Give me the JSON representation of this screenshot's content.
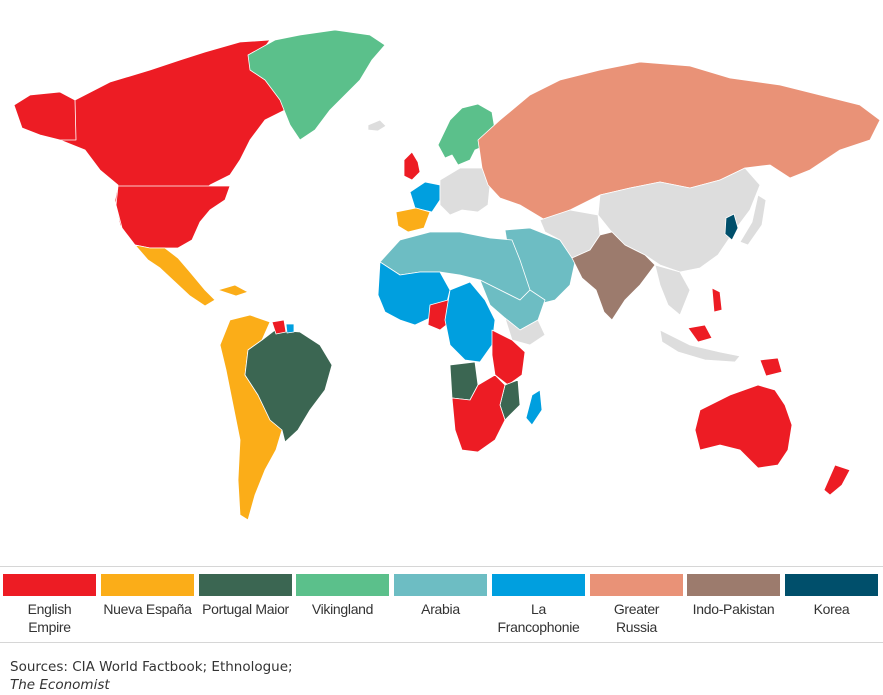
{
  "legend": [
    {
      "label": "English\nEmpire",
      "color": "#ed1c24"
    },
    {
      "label": "Nueva España",
      "color": "#fbad18"
    },
    {
      "label": "Portugal Maior",
      "color": "#3b6652"
    },
    {
      "label": "Vikingland",
      "color": "#5bc08b"
    },
    {
      "label": "Arabia",
      "color": "#6dbdc3"
    },
    {
      "label": "La\nFrancophonie",
      "color": "#009fdf"
    },
    {
      "label": "Greater\nRussia",
      "color": "#e99277"
    },
    {
      "label": "Indo-Pakistan",
      "color": "#9c7b6d"
    },
    {
      "label": "Korea",
      "color": "#004f6b"
    }
  ],
  "unassigned_color": "#dddddd",
  "sources": {
    "text": "Sources: CIA World Factbook; Ethnologue;",
    "publication": "The Economist"
  }
}
